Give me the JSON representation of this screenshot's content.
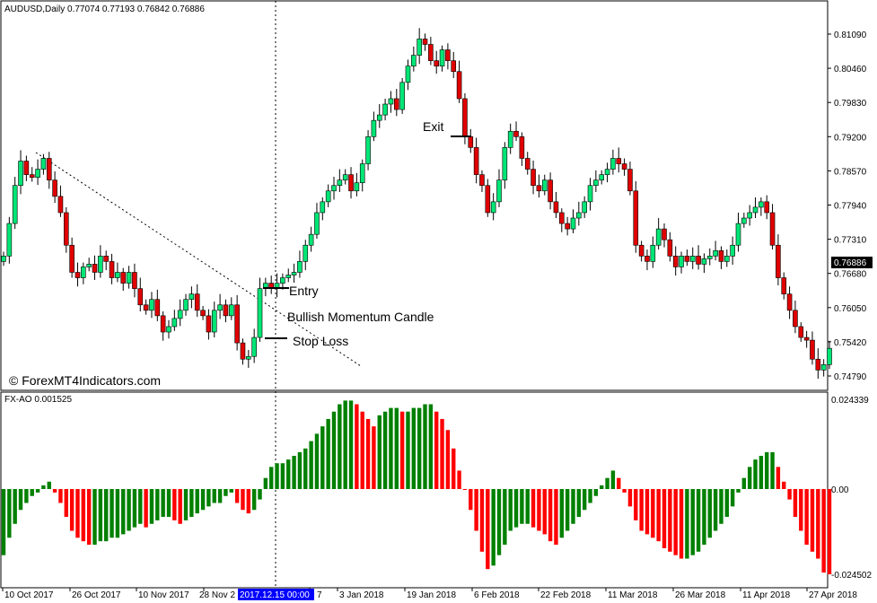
{
  "header": {
    "symbol_info": "AUDUSD,Daily  0.77074 0.77193 0.76842 0.76886"
  },
  "indicator": {
    "label": "FX-AO 0.001525"
  },
  "watermark": "© ForexMT4Indicators.com",
  "annotations": {
    "entry": "Entry",
    "exit": "Exit",
    "candle": "Bullish Momentum Candle",
    "stop": "Stop Loss"
  },
  "crosshair_date": "2017.12.15 00:00",
  "colors": {
    "bull": "#00e676",
    "bear": "#e00000",
    "ao_up": "#008000",
    "ao_down": "#ff0000",
    "highlight": "#0000ff"
  },
  "chart_data": [
    {
      "type": "candlestick",
      "title": "AUDUSD,Daily",
      "y_ticks": [
        "0.81090",
        "0.80460",
        "0.79830",
        "0.79200",
        "0.78570",
        "0.77940",
        "0.77310",
        "0.76680",
        "0.76050",
        "0.75420",
        "0.74790"
      ],
      "current_price": "0.76886",
      "ylim": [
        0.7479,
        0.8109
      ],
      "x_ticks": [
        "10 Oct 2017",
        "26 Oct 2017",
        "10 Nov 2017",
        "28 Nov 2",
        "7",
        "3 Jan 2018",
        "19 Jan 2018",
        "6 Feb 2018",
        "22 Feb 2018",
        "11 Mar 2018",
        "26 Mar 2018",
        "11 Apr 2018",
        "27 Apr 2018"
      ],
      "close": [
        0.77,
        0.776,
        0.783,
        0.7875,
        0.785,
        0.7845,
        0.786,
        0.788,
        0.784,
        0.781,
        0.778,
        0.772,
        0.767,
        0.766,
        0.768,
        0.7685,
        0.767,
        0.77,
        0.769,
        0.766,
        0.767,
        0.765,
        0.767,
        0.764,
        0.761,
        0.76,
        0.762,
        0.759,
        0.756,
        0.757,
        0.7585,
        0.76,
        0.762,
        0.763,
        0.76,
        0.759,
        0.756,
        0.76,
        0.761,
        0.759,
        0.761,
        0.754,
        0.751,
        0.7515,
        0.755,
        0.764,
        0.765,
        0.764,
        0.765,
        0.766,
        0.7665,
        0.767,
        0.769,
        0.772,
        0.774,
        0.778,
        0.78,
        0.782,
        0.783,
        0.784,
        0.785,
        0.782,
        0.7835,
        0.787,
        0.792,
        0.795,
        0.796,
        0.798,
        0.799,
        0.797,
        0.802,
        0.805,
        0.807,
        0.81,
        0.809,
        0.806,
        0.805,
        0.808,
        0.806,
        0.804,
        0.799,
        0.792,
        0.79,
        0.785,
        0.783,
        0.778,
        0.78,
        0.784,
        0.79,
        0.793,
        0.792,
        0.788,
        0.786,
        0.783,
        0.782,
        0.784,
        0.78,
        0.778,
        0.776,
        0.775,
        0.777,
        0.778,
        0.78,
        0.783,
        0.784,
        0.785,
        0.786,
        0.788,
        0.787,
        0.786,
        0.782,
        0.772,
        0.77,
        0.769,
        0.772,
        0.775,
        0.773,
        0.77,
        0.768,
        0.77,
        0.769,
        0.77,
        0.7685,
        0.7695,
        0.77,
        0.771,
        0.769,
        0.77,
        0.772,
        0.776,
        0.777,
        0.778,
        0.779,
        0.78,
        0.778,
        0.772,
        0.766,
        0.763,
        0.76,
        0.757,
        0.755,
        0.7545,
        0.751,
        0.749,
        0.75,
        0.753
      ]
    },
    {
      "type": "bar",
      "title": "FX-AO 0.001525",
      "y_ticks": [
        "0.024339",
        "0.00",
        "-0.024502"
      ],
      "ylim": [
        -0.024502,
        0.024339
      ],
      "values": [
        -0.019,
        -0.014,
        -0.01,
        -0.006,
        -0.004,
        -0.002,
        -0.001,
        0.001,
        0.002,
        -0.001,
        -0.004,
        -0.008,
        -0.012,
        -0.014,
        -0.015,
        -0.016,
        -0.016,
        -0.015,
        -0.015,
        -0.014,
        -0.014,
        -0.013,
        -0.012,
        -0.011,
        -0.01,
        -0.011,
        -0.01,
        -0.009,
        -0.008,
        -0.008,
        -0.009,
        -0.01,
        -0.009,
        -0.008,
        -0.007,
        -0.006,
        -0.005,
        -0.004,
        -0.004,
        -0.002,
        -0.001,
        -0.004,
        -0.006,
        -0.007,
        -0.006,
        -0.003,
        0.003,
        0.006,
        0.007,
        0.007,
        0.008,
        0.009,
        0.01,
        0.011,
        0.013,
        0.015,
        0.017,
        0.019,
        0.021,
        0.023,
        0.024,
        0.024,
        0.023,
        0.021,
        0.019,
        0.017,
        0.02,
        0.021,
        0.022,
        0.022,
        0.021,
        0.021,
        0.022,
        0.022,
        0.023,
        0.023,
        0.021,
        0.019,
        0.016,
        0.011,
        0.005,
        0.0,
        -0.006,
        -0.012,
        -0.018,
        -0.023,
        -0.022,
        -0.019,
        -0.016,
        -0.012,
        -0.011,
        -0.01,
        -0.01,
        -0.011,
        -0.012,
        -0.013,
        -0.015,
        -0.016,
        -0.014,
        -0.012,
        -0.01,
        -0.008,
        -0.006,
        -0.004,
        -0.002,
        0.001,
        0.003,
        0.005,
        0.003,
        -0.001,
        -0.005,
        -0.009,
        -0.012,
        -0.013,
        -0.014,
        -0.015,
        -0.017,
        -0.018,
        -0.019,
        -0.02,
        -0.02,
        -0.019,
        -0.018,
        -0.016,
        -0.014,
        -0.012,
        -0.01,
        -0.008,
        -0.005,
        -0.001,
        0.003,
        0.006,
        0.008,
        0.009,
        0.01,
        0.01,
        0.006,
        0.002,
        -0.003,
        -0.008,
        -0.012,
        -0.016,
        -0.018,
        -0.02,
        -0.024,
        -0.0245
      ]
    }
  ]
}
